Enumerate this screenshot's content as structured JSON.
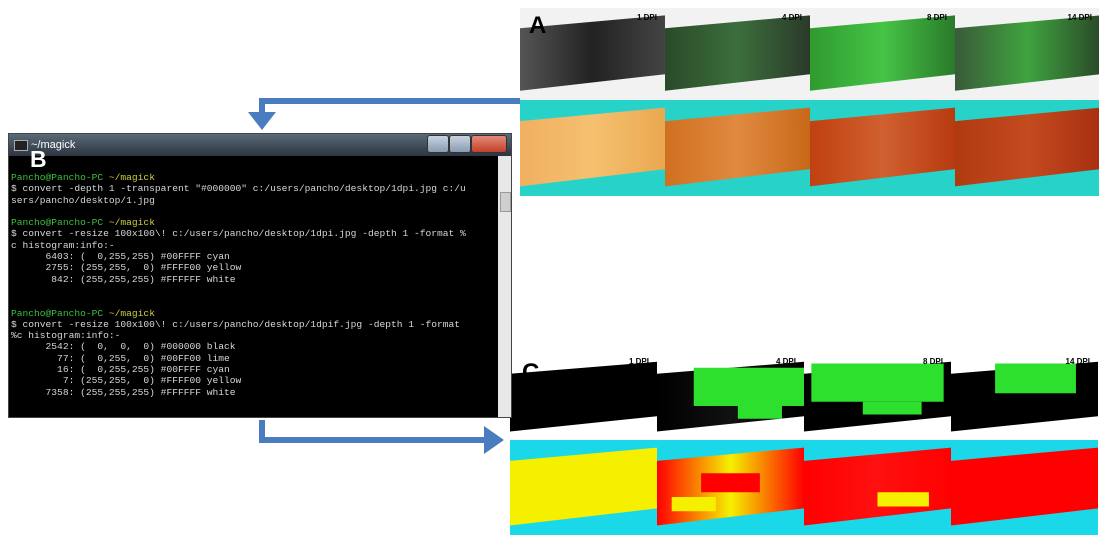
{
  "panel_labels": {
    "a": "A",
    "b": "B",
    "c": "C"
  },
  "panel_a": {
    "dpi_labels": [
      "1 DPI",
      "4 DPI",
      "8 DPI",
      "14 DPI"
    ]
  },
  "panel_c": {
    "dpi_labels": [
      "1 DPI",
      "4 DPI",
      "8 DPI",
      "14 DPI"
    ]
  },
  "terminal": {
    "title": "~/magick",
    "blocks": [
      {
        "user": "Pancho@Pancho-PC",
        "path": "~/magick",
        "lines": [
          "$ convert -depth 1 -transparent \"#000000\" c:/users/pancho/desktop/1dpi.jpg c:/u",
          "sers/pancho/desktop/1.jpg"
        ]
      },
      {
        "user": "Pancho@Pancho-PC",
        "path": "~/magick",
        "lines": [
          "$ convert -resize 100x100\\! c:/users/pancho/desktop/1dpi.jpg -depth 1 -format %",
          "c histogram:info:-",
          "      6403: (  0,255,255) #00FFFF cyan",
          "      2755: (255,255,  0) #FFFF00 yellow",
          "       842: (255,255,255) #FFFFFF white"
        ]
      },
      {
        "user": "Pancho@Pancho-PC",
        "path": "~/magick",
        "lines": [
          "$ convert -resize 100x100\\! c:/users/pancho/desktop/1dpif.jpg -depth 1 -format",
          "%c histogram:info:-",
          "      2542: (  0,  0,  0) #000000 black",
          "        77: (  0,255,  0) #00FF00 lime",
          "        16: (  0,255,255) #00FFFF cyan",
          "         7: (255,255,  0) #FFFF00 yellow",
          "      7358: (255,255,255) #FFFFFF white"
        ]
      }
    ]
  }
}
